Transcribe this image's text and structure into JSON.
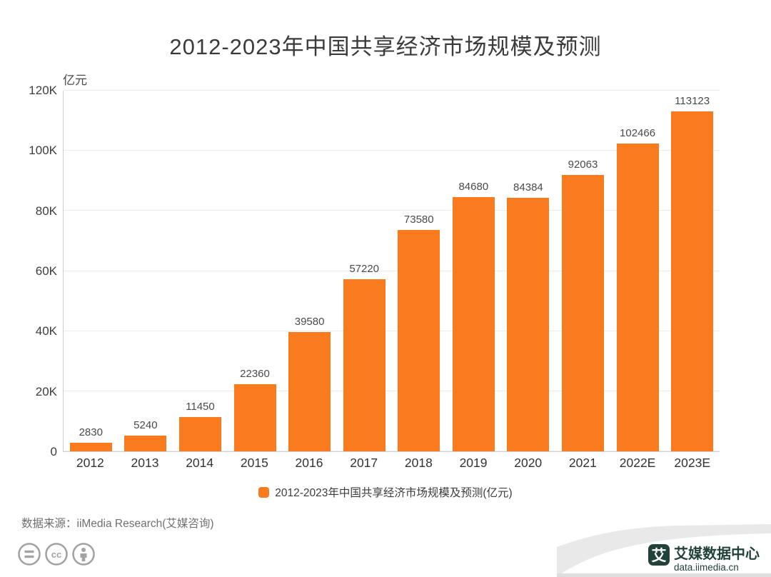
{
  "page": {
    "title": "2012-2023年中国共享经济市场规模及预测"
  },
  "chart_data": {
    "type": "bar",
    "title": "2012-2023年中国共享经济市场规模及预测",
    "ylabel": "亿元",
    "xlabel": "",
    "ylim": [
      0,
      120000
    ],
    "ytick_labels": [
      "0",
      "20K",
      "40K",
      "60K",
      "80K",
      "100K",
      "120K"
    ],
    "categories": [
      "2012",
      "2013",
      "2014",
      "2015",
      "2016",
      "2017",
      "2018",
      "2019",
      "2020",
      "2021",
      "2022E",
      "2023E"
    ],
    "values": [
      2830,
      5240,
      11450,
      22360,
      39580,
      57220,
      73580,
      84680,
      84384,
      92063,
      102466,
      113123
    ],
    "bar_color": "#fa7a1e",
    "grid": true,
    "legend": {
      "label": "2012-2023年中国共享经济市场规模及预测(亿元)",
      "position": "bottom"
    }
  },
  "source_note": "数据来源：iiMedia Research(艾媒咨询)",
  "footer": {
    "license_icons": [
      "equals-icon",
      "cc-icon",
      "attribution-person-icon"
    ],
    "brand": {
      "logo_char": "艾",
      "name": "艾媒数据中心",
      "domain": "data.iimedia.cn",
      "color": "#21423b"
    }
  }
}
